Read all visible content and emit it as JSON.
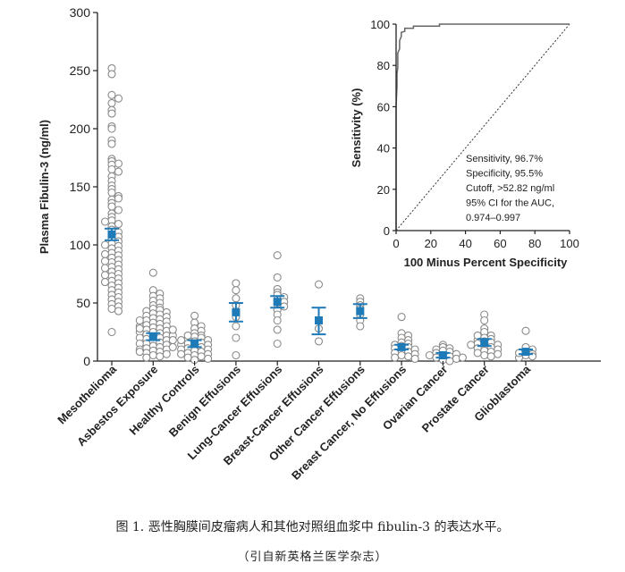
{
  "caption": {
    "line1": "图 1. 恶性胸膜间皮瘤病人和其他对照组血浆中 fibulin-3 的表达水平。",
    "line2": "（引自新英格兰医学杂志）"
  },
  "chart_data": [
    {
      "type": "scatter",
      "ylabel": "Plasma Fibulin-3 (ng/ml)",
      "ylim": [
        0,
        300
      ],
      "yticks": [
        0,
        50,
        100,
        150,
        200,
        250,
        300
      ],
      "categories": [
        "Mesothelioma",
        "Asbestos Exposure",
        "Healthy Controls",
        "Benign Effusions",
        "Lung-Cancer Effusions",
        "Breast-Cancer Effusions",
        "Other Cancer Effusions",
        "Breast Cancer, No Effusions",
        "Ovarian Cancer",
        "Prostate Cancer",
        "Glioblastoma"
      ],
      "mean": [
        109,
        21,
        15,
        42,
        51,
        35,
        43,
        12,
        5,
        16,
        8
      ],
      "ci_low": [
        104,
        18,
        12,
        34,
        46,
        23,
        37,
        10,
        3,
        13,
        6
      ],
      "ci_high": [
        114,
        24,
        18,
        50,
        56,
        46,
        49,
        14,
        7,
        19,
        10
      ],
      "points": [
        [
          252,
          247,
          229,
          226,
          222,
          216,
          213,
          202,
          200,
          190,
          187,
          174,
          172,
          170,
          169,
          165,
          163,
          159,
          155,
          151,
          148,
          145,
          142,
          139,
          136,
          133,
          130,
          127,
          124,
          121,
          118,
          116,
          113,
          111,
          109,
          107,
          105,
          103,
          101,
          99,
          97,
          95,
          93,
          91,
          89,
          87,
          85,
          83,
          81,
          79,
          77,
          75,
          73,
          71,
          69,
          67,
          65,
          63,
          61,
          59,
          57,
          55,
          53,
          51,
          49,
          47,
          45,
          43,
          25,
          140,
          120,
          100,
          92,
          86,
          80,
          74,
          68
        ],
        [
          76,
          61,
          58,
          56,
          54,
          52,
          50,
          48,
          46,
          45,
          44,
          43,
          42,
          41,
          40,
          39,
          38,
          37,
          36,
          35,
          34,
          33,
          32,
          31,
          30,
          29,
          28,
          27,
          26,
          25,
          24,
          23,
          22,
          21,
          20,
          19,
          18,
          17,
          16,
          15,
          14,
          13,
          12,
          11,
          10,
          9,
          8,
          7,
          6,
          5,
          4,
          3,
          30,
          25,
          20,
          15,
          10,
          28,
          22,
          18,
          12,
          8,
          35,
          27
        ],
        [
          39,
          33,
          30,
          28,
          26,
          24,
          22,
          21,
          20,
          19,
          18,
          17,
          16,
          15,
          14,
          13,
          12,
          11,
          10,
          9,
          8,
          7,
          6,
          5,
          4,
          3,
          2,
          1,
          14,
          10,
          6,
          18,
          22
        ],
        [
          67,
          61,
          54,
          48,
          42,
          38,
          30,
          20,
          5
        ],
        [
          91,
          72,
          62,
          59,
          57,
          55,
          53,
          51,
          49,
          47,
          44,
          40,
          35,
          27,
          15
        ],
        [
          66,
          28,
          17
        ],
        [
          54,
          51,
          48,
          45,
          40,
          35,
          30
        ],
        [
          38,
          24,
          22,
          20,
          18,
          16,
          15,
          14,
          13,
          12,
          11,
          10,
          9,
          8,
          7,
          6,
          5,
          4,
          3,
          2
        ],
        [
          14,
          12,
          11,
          10,
          9,
          8,
          7,
          6,
          5,
          4,
          3,
          2,
          1,
          0,
          5,
          3
        ],
        [
          40,
          35,
          28,
          25,
          22,
          20,
          19,
          18,
          17,
          16,
          15,
          14,
          13,
          12,
          11,
          10,
          9,
          8,
          7,
          6,
          5,
          4,
          22,
          14
        ],
        [
          26,
          12,
          10,
          8,
          6,
          5,
          4,
          3,
          7
        ]
      ]
    },
    {
      "type": "line",
      "xlabel": "100 Minus Percent Specificity",
      "ylabel": "Sensitivity (%)",
      "xlim": [
        0,
        100
      ],
      "ylim": [
        0,
        100
      ],
      "xticks": [
        0,
        20,
        40,
        60,
        80,
        100
      ],
      "yticks": [
        0,
        20,
        40,
        60,
        80,
        100
      ],
      "roc_x": [
        0,
        0,
        0.5,
        0.5,
        1,
        1,
        2,
        2,
        3,
        3,
        5,
        5,
        10,
        10,
        25,
        25,
        100
      ],
      "roc_y": [
        0,
        60,
        70,
        76,
        79,
        86,
        88,
        92,
        94,
        96,
        96.5,
        98,
        98,
        99,
        99,
        100,
        100
      ],
      "diagonal_x": [
        0,
        100
      ],
      "diagonal_y": [
        0,
        100
      ],
      "annotation": [
        "Sensitivity, 96.7%",
        "Specificity, 95.5%",
        "Cutoff, >52.82 ng/ml",
        "95% CI for the AUC,",
        "0.974–0.997"
      ]
    }
  ]
}
